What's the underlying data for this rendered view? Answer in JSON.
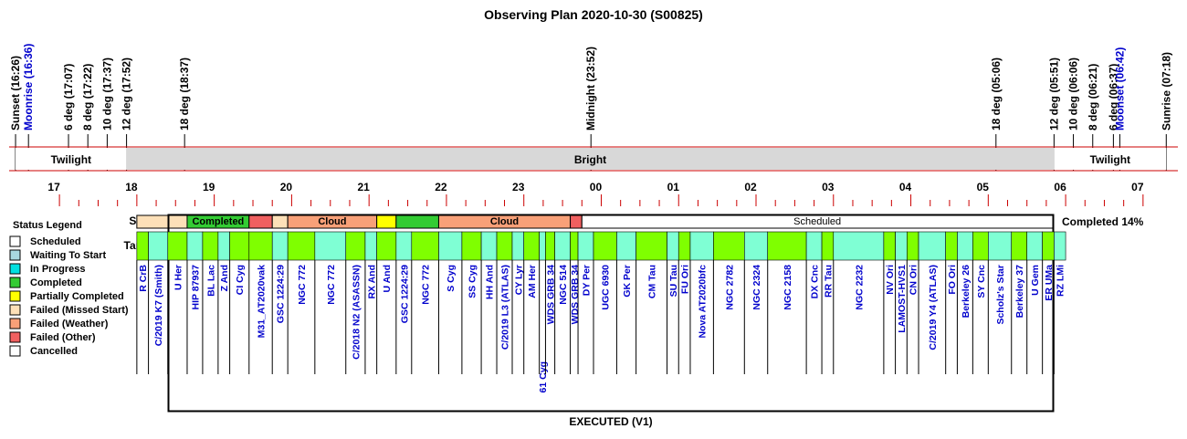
{
  "chart_data": {
    "type": "timeline",
    "title": "Observing Plan 2020-10-30 (S00825)",
    "footer": "EXECUTED (V1)",
    "completion_label": "Completed 14%",
    "row_labels": {
      "status": "Status",
      "targets": "Targets"
    },
    "time_axis": {
      "hour_ticks": [
        "17",
        "18",
        "19",
        "20",
        "21",
        "22",
        "23",
        "00",
        "01",
        "02",
        "03",
        "04",
        "05",
        "06",
        "07"
      ],
      "hour_values": [
        17,
        18,
        19,
        20,
        21,
        22,
        23,
        24,
        25,
        26,
        27,
        28,
        29,
        30,
        31
      ],
      "range": [
        16.35,
        31.45
      ]
    },
    "events": [
      {
        "label": "Sunset (16:26)",
        "time": 16.433,
        "color": "#000000"
      },
      {
        "label": "Moonrise (16:36)",
        "time": 16.6,
        "color": "#0000cc"
      },
      {
        "label": "6 deg (17:07)",
        "time": 17.117,
        "color": "#000000"
      },
      {
        "label": "8 deg (17:22)",
        "time": 17.367,
        "color": "#000000"
      },
      {
        "label": "10 deg (17:37)",
        "time": 17.617,
        "color": "#000000"
      },
      {
        "label": "12 deg (17:52)",
        "time": 17.867,
        "color": "#000000"
      },
      {
        "label": "18 deg (18:37)",
        "time": 18.617,
        "color": "#000000"
      },
      {
        "label": "Midnight (23:52)",
        "time": 23.867,
        "color": "#000000"
      },
      {
        "label": "18 deg (05:06)",
        "time": 29.1,
        "color": "#000000"
      },
      {
        "label": "12 deg (05:51)",
        "time": 29.85,
        "color": "#000000"
      },
      {
        "label": "10 deg (06:06)",
        "time": 30.1,
        "color": "#000000"
      },
      {
        "label": "8 deg (06:21)",
        "time": 30.35,
        "color": "#000000"
      },
      {
        "label": "6 deg (06:37)",
        "time": 30.617,
        "color": "#000000"
      },
      {
        "label": "Moonset (06:42)",
        "time": 30.7,
        "color": "#0000cc"
      },
      {
        "label": "Sunrise (07:18)",
        "time": 31.3,
        "color": "#000000"
      }
    ],
    "sky_bands": [
      {
        "label": "Twilight",
        "start": 16.433,
        "end": 17.867,
        "color": "#ffffff"
      },
      {
        "label": "Bright",
        "start": 17.867,
        "end": 29.85,
        "color": "#d8d8d8"
      },
      {
        "label": "Twilight",
        "start": 29.85,
        "end": 31.3,
        "color": "#ffffff"
      }
    ],
    "status_blocks": [
      {
        "label": "",
        "status": "Failed (Missed Start)",
        "start": 18.0,
        "end": 18.65
      },
      {
        "label": "Completed",
        "status": "Completed",
        "start": 18.65,
        "end": 19.45
      },
      {
        "label": "",
        "status": "Failed (Other)",
        "start": 19.45,
        "end": 19.75
      },
      {
        "label": "",
        "status": "Failed (Missed Start)",
        "start": 19.75,
        "end": 19.95
      },
      {
        "label": "Cloud",
        "status": "Failed (Weather)",
        "start": 19.95,
        "end": 21.1
      },
      {
        "label": "",
        "status": "Partially Completed",
        "start": 21.1,
        "end": 21.35
      },
      {
        "label": "",
        "status": "Completed",
        "start": 21.35,
        "end": 21.9
      },
      {
        "label": "Cloud",
        "status": "Failed (Weather)",
        "start": 21.9,
        "end": 23.6
      },
      {
        "label": "",
        "status": "Failed (Other)",
        "start": 23.6,
        "end": 23.75
      },
      {
        "label": "Scheduled",
        "status": "Scheduled",
        "start": 23.75,
        "end": 31.2
      }
    ],
    "targets": [
      {
        "name": "R CrB",
        "start": 18.0,
        "end": 18.15,
        "color": "#7fff00"
      },
      {
        "name": "C/2019 K7 (Smith)",
        "start": 18.15,
        "end": 18.4,
        "color": "#7fffd4"
      },
      {
        "name": "U Her",
        "start": 18.4,
        "end": 18.65,
        "color": "#7fff00"
      },
      {
        "name": "HIP 87937",
        "start": 18.65,
        "end": 18.85,
        "color": "#7fffd4"
      },
      {
        "name": "BL Lac",
        "start": 18.85,
        "end": 19.05,
        "color": "#7fff00"
      },
      {
        "name": "Z And",
        "start": 19.05,
        "end": 19.2,
        "color": "#7fffd4"
      },
      {
        "name": "CI Cyg",
        "start": 19.2,
        "end": 19.45,
        "color": "#7fff00"
      },
      {
        "name": "M31_AT2020vak",
        "start": 19.45,
        "end": 19.75,
        "color": "#7fff00"
      },
      {
        "name": "GSC 1224:29",
        "start": 19.75,
        "end": 19.95,
        "color": "#7fffd4"
      },
      {
        "name": "NGC 772",
        "start": 19.95,
        "end": 20.3,
        "color": "#7fff00"
      },
      {
        "name": "NGC 772",
        "start": 20.3,
        "end": 20.7,
        "color": "#7fffd4"
      },
      {
        "name": "C/2018 N2 (ASASSN)",
        "start": 20.7,
        "end": 20.95,
        "color": "#7fff00"
      },
      {
        "name": "RX And",
        "start": 20.95,
        "end": 21.1,
        "color": "#7fffd4"
      },
      {
        "name": "U And",
        "start": 21.1,
        "end": 21.35,
        "color": "#7fff00"
      },
      {
        "name": "GSC 1224:29",
        "start": 21.35,
        "end": 21.55,
        "color": "#7fffd4"
      },
      {
        "name": "NGC 772",
        "start": 21.55,
        "end": 21.9,
        "color": "#7fff00"
      },
      {
        "name": "S Cyg",
        "start": 21.9,
        "end": 22.2,
        "color": "#7fffd4"
      },
      {
        "name": "SS Cyg",
        "start": 22.2,
        "end": 22.45,
        "color": "#7fff00"
      },
      {
        "name": "HH And",
        "start": 22.45,
        "end": 22.65,
        "color": "#7fffd4"
      },
      {
        "name": "C/2019 L3 (ATLAS)",
        "start": 22.65,
        "end": 22.85,
        "color": "#7fff00"
      },
      {
        "name": "CY Lyr",
        "start": 22.85,
        "end": 23.0,
        "color": "#7fffd4"
      },
      {
        "name": "AM Her",
        "start": 23.0,
        "end": 23.2,
        "color": "#7fff00"
      },
      {
        "name": "61 Cyg",
        "start": 23.2,
        "end": 23.28,
        "color": "#7fffd4"
      },
      {
        "name": "WDS GRB 34",
        "start": 23.28,
        "end": 23.4,
        "color": "#7fff00"
      },
      {
        "name": "NGC 514",
        "start": 23.4,
        "end": 23.6,
        "color": "#7fffd4"
      },
      {
        "name": "WDS GRB 34",
        "start": 23.6,
        "end": 23.7,
        "color": "#7fff00"
      },
      {
        "name": "DY Per",
        "start": 23.7,
        "end": 23.9,
        "color": "#7fffd4"
      },
      {
        "name": "UGC 6930",
        "start": 23.9,
        "end": 24.2,
        "color": "#7fff00"
      },
      {
        "name": "GK Per",
        "start": 24.2,
        "end": 24.45,
        "color": "#7fffd4"
      },
      {
        "name": "CM Tau",
        "start": 24.45,
        "end": 24.85,
        "color": "#7fff00"
      },
      {
        "name": "SU Tau",
        "start": 24.85,
        "end": 25.0,
        "color": "#7fffd4"
      },
      {
        "name": "FU Ori",
        "start": 25.0,
        "end": 25.15,
        "color": "#7fff00"
      },
      {
        "name": "Nova AT2020bfc",
        "start": 25.15,
        "end": 25.45,
        "color": "#7fffd4"
      },
      {
        "name": "NGC 2782",
        "start": 25.45,
        "end": 25.85,
        "color": "#7fff00"
      },
      {
        "name": "NGC 2324",
        "start": 25.85,
        "end": 26.15,
        "color": "#7fffd4"
      },
      {
        "name": "NGC 2158",
        "start": 26.15,
        "end": 26.65,
        "color": "#7fff00"
      },
      {
        "name": "DX Cnc",
        "start": 26.65,
        "end": 26.85,
        "color": "#7fffd4"
      },
      {
        "name": "RR Tau",
        "start": 26.85,
        "end": 27.0,
        "color": "#7fff00"
      },
      {
        "name": "NGC 2232",
        "start": 27.0,
        "end": 27.65,
        "color": "#7fffd4"
      },
      {
        "name": "NV Ori",
        "start": 27.65,
        "end": 27.8,
        "color": "#7fff00"
      },
      {
        "name": "LAMOST-HVS1",
        "start": 27.8,
        "end": 27.95,
        "color": "#7fffd4"
      },
      {
        "name": "CN Ori",
        "start": 27.95,
        "end": 28.1,
        "color": "#7fff00"
      },
      {
        "name": "C/2019 Y4 (ATLAS)",
        "start": 28.1,
        "end": 28.45,
        "color": "#7fffd4"
      },
      {
        "name": "FO Ori",
        "start": 28.45,
        "end": 28.6,
        "color": "#7fff00"
      },
      {
        "name": "Berkeley 26",
        "start": 28.6,
        "end": 28.8,
        "color": "#7fffd4"
      },
      {
        "name": "SY Cnc",
        "start": 28.8,
        "end": 29.0,
        "color": "#7fff00"
      },
      {
        "name": "Scholz's Star",
        "start": 29.0,
        "end": 29.3,
        "color": "#7fffd4"
      },
      {
        "name": "Berkeley 37",
        "start": 29.3,
        "end": 29.5,
        "color": "#7fff00"
      },
      {
        "name": "U Gem",
        "start": 29.5,
        "end": 29.7,
        "color": "#7fffd4"
      },
      {
        "name": "ER UMa",
        "start": 29.7,
        "end": 29.85,
        "color": "#7fff00"
      },
      {
        "name": "RZ LMi",
        "start": 29.85,
        "end": 30.0,
        "color": "#7fffd4"
      }
    ],
    "legend": {
      "title": "Status Legend",
      "items": [
        {
          "label": "Scheduled",
          "color": "#ffffff"
        },
        {
          "label": "Waiting To Start",
          "color": "#a8d8e0"
        },
        {
          "label": "In Progress",
          "color": "#00e0e0"
        },
        {
          "label": "Completed",
          "color": "#33cc33"
        },
        {
          "label": "Partially Completed",
          "color": "#ffff00"
        },
        {
          "label": "Failed (Missed Start)",
          "color": "#fde0b8"
        },
        {
          "label": "Failed (Weather)",
          "color": "#f8a078"
        },
        {
          "label": "Failed (Other)",
          "color": "#f06060"
        },
        {
          "label": "Cancelled",
          "color": "#ffffff"
        }
      ]
    }
  }
}
